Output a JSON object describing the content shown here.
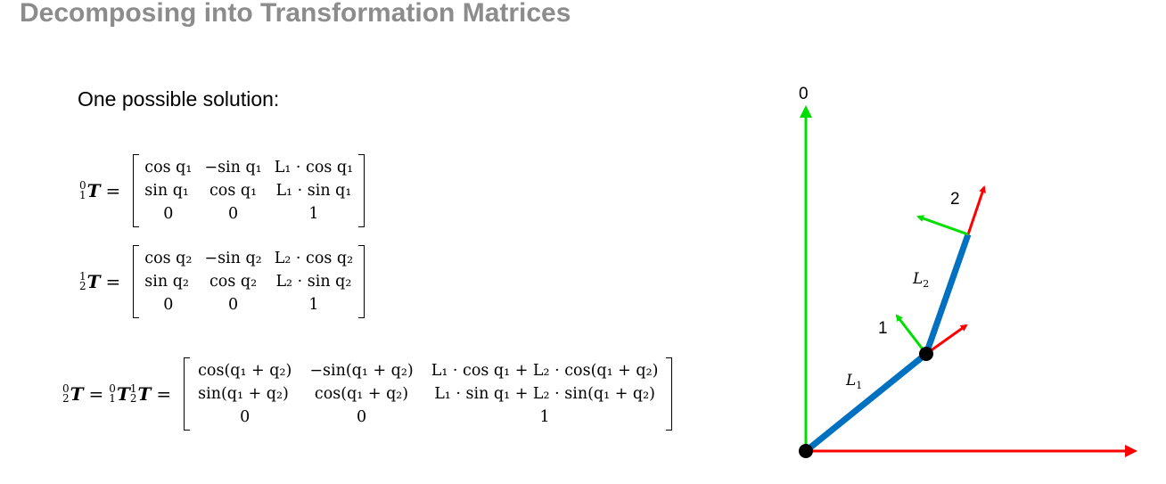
{
  "title": "Decomposing into Transformation Matrices",
  "intro": "One possible solution:",
  "equations": {
    "eq1": {
      "lhs_sup": "0",
      "lhs_sub": "1",
      "lhs_T": "T",
      "equals": "=",
      "rows": [
        [
          "cos q₁",
          "−sin q₁",
          "L₁ · cos q₁"
        ],
        [
          "sin q₁",
          "cos q₁",
          "L₁ · sin q₁"
        ],
        [
          "0",
          "0",
          "1"
        ]
      ]
    },
    "eq2": {
      "lhs_sup": "1",
      "lhs_sub": "2",
      "lhs_T": "T",
      "equals": "=",
      "rows": [
        [
          "cos q₂",
          "−sin q₂",
          "L₂ · cos q₂"
        ],
        [
          "sin q₂",
          "cos q₂",
          "L₂ · sin q₂"
        ],
        [
          "0",
          "0",
          "1"
        ]
      ]
    },
    "eq3": {
      "lhs_sup": "0",
      "lhs_sub": "2",
      "lhs_T": "T",
      "equals": "=",
      "prod1_sup": "0",
      "prod1_sub": "1",
      "prod2_sup": "1",
      "prod2_sub": "2",
      "rows": [
        [
          "cos(q₁ + q₂)",
          "−sin(q₁ + q₂)",
          "L₁ · cos q₁ + L₂ · cos(q₁ + q₂)"
        ],
        [
          "sin(q₁ + q₂)",
          "cos(q₁ + q₂)",
          "L₁ · sin q₁ + L₂ · sin(q₁ + q₂)"
        ],
        [
          "0",
          "0",
          "1"
        ]
      ]
    }
  },
  "diagram": {
    "frame0_label": "0",
    "frame1_label": "1",
    "frame2_label": "2",
    "link1_label": "L",
    "link1_sub": "1",
    "link2_label": "L",
    "link2_sub": "2",
    "colors": {
      "x_axis": "#ff0000",
      "y_axis": "#00dd00",
      "link": "#0070c0",
      "joint": "#000000"
    }
  }
}
